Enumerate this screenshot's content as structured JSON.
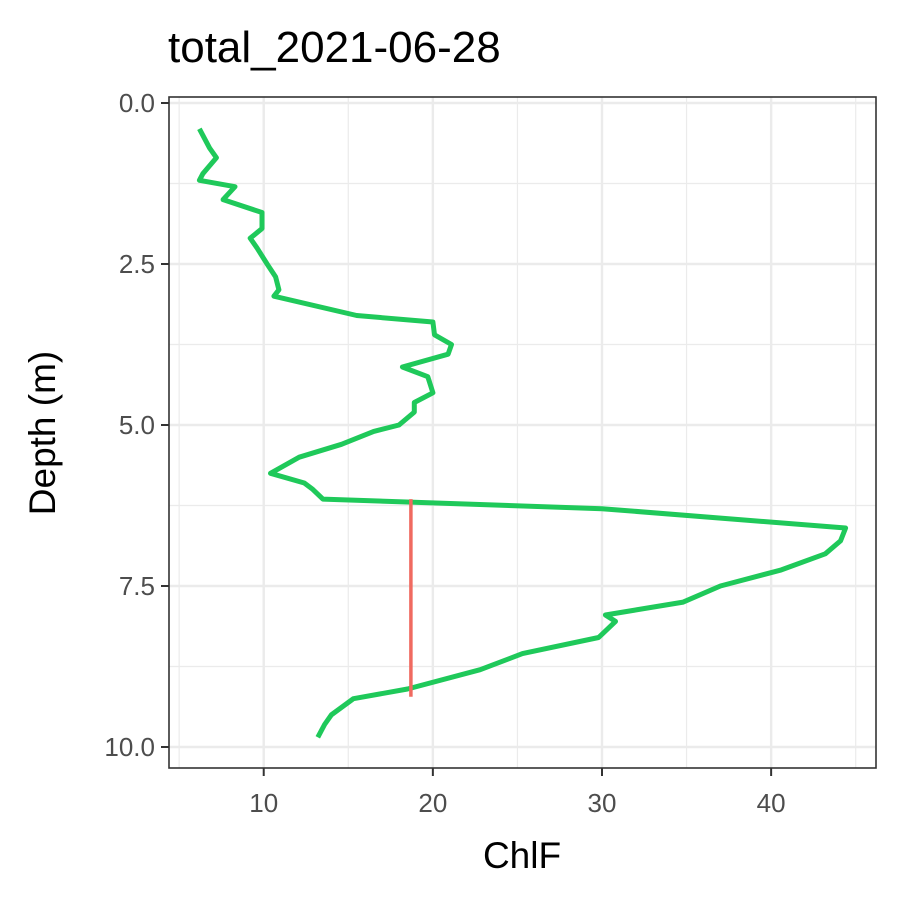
{
  "chart_data": {
    "type": "line",
    "title": "total_2021-06-28",
    "xlabel": "ChlF",
    "ylabel": "Depth (m)",
    "xlim": [
      4.4,
      46.2
    ],
    "ylim": [
      0,
      10.25
    ],
    "y_reversed": true,
    "x_ticks": [
      10,
      20,
      30,
      40
    ],
    "x_tick_labels": [
      "10",
      "20",
      "30",
      "40"
    ],
    "y_ticks": [
      0,
      2.5,
      5,
      7.5,
      10
    ],
    "y_tick_labels": [
      "0.0",
      "2.5",
      "5.0",
      "7.5",
      "10.0"
    ],
    "grid": true,
    "legend": "none",
    "colors": {
      "profile": "#1fc95a",
      "segment": "#f06a60"
    },
    "series": [
      {
        "kind": "profile",
        "x": [
          6.2,
          6.8,
          7.2,
          6.4,
          6.2,
          8.3,
          7.6,
          9.9,
          9.9,
          9.2,
          9.6,
          10.2,
          10.7,
          10.9,
          10.6,
          15.5,
          20.0,
          20.1,
          21.1,
          20.9,
          18.2,
          19.7,
          20.0,
          18.9,
          18.9,
          18.0,
          16.5,
          14.6,
          12.1,
          10.4,
          12.4,
          12.9,
          13.5,
          30.0,
          44.4,
          44.1,
          43.2,
          40.6,
          37.0,
          34.8,
          30.2,
          30.8,
          29.8,
          25.3,
          22.8,
          18.5,
          15.3,
          14.0,
          13.6,
          13.2
        ],
        "y": [
          0.4,
          0.7,
          0.85,
          1.1,
          1.2,
          1.3,
          1.5,
          1.7,
          1.95,
          2.1,
          2.25,
          2.5,
          2.7,
          2.9,
          3.0,
          3.3,
          3.4,
          3.6,
          3.75,
          3.9,
          4.1,
          4.25,
          4.5,
          4.65,
          4.8,
          5.0,
          5.1,
          5.3,
          5.5,
          5.75,
          5.9,
          6.0,
          6.15,
          6.3,
          6.6,
          6.8,
          7.0,
          7.25,
          7.5,
          7.75,
          7.95,
          8.05,
          8.3,
          8.55,
          8.8,
          9.1,
          9.25,
          9.5,
          9.65,
          9.85
        ]
      },
      {
        "kind": "segment",
        "x": [
          18.7,
          18.7
        ],
        "y": [
          6.15,
          9.22
        ]
      }
    ]
  }
}
